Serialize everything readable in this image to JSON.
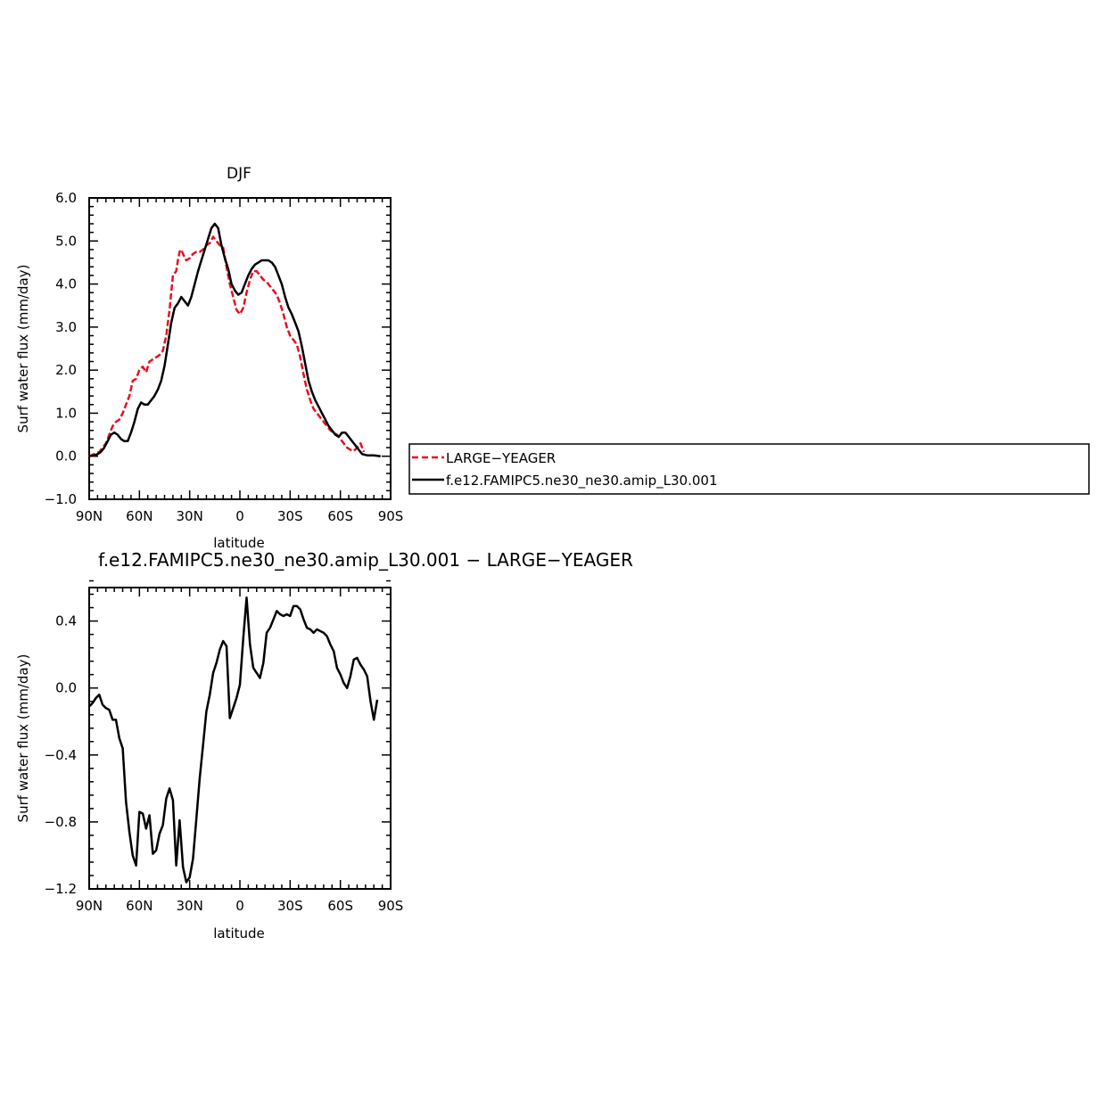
{
  "chart_data": [
    {
      "type": "line",
      "title": "DJF",
      "xlabel": "latitude",
      "ylabel": "Surf water flux (mm/day)",
      "xlim": [
        90,
        -90
      ],
      "ylim": [
        -1.0,
        6.0
      ],
      "xticks": [
        90,
        60,
        30,
        0,
        -30,
        -60,
        -90
      ],
      "xtick_labels": [
        "90N",
        "60N",
        "30N",
        "0",
        "30S",
        "60S",
        "90S"
      ],
      "yticks": [
        -1.0,
        0.0,
        1.0,
        2.0,
        3.0,
        4.0,
        5.0,
        6.0
      ],
      "ytick_labels": [
        "−1.0",
        "0.0",
        "1.0",
        "2.0",
        "3.0",
        "4.0",
        "5.0",
        "6.0"
      ],
      "legend_position": "right, outside plot",
      "series": [
        {
          "name": "LARGE−YEAGER",
          "color": "#e8101f",
          "dash": "dashed",
          "points": [
            [
              90,
              0.0
            ],
            [
              87,
              0.05
            ],
            [
              84,
              0.1
            ],
            [
              82,
              0.2
            ],
            [
              80,
              0.3
            ],
            [
              78,
              0.5
            ],
            [
              76,
              0.7
            ],
            [
              74,
              0.8
            ],
            [
              72,
              0.85
            ],
            [
              70,
              1.0
            ],
            [
              68,
              1.2
            ],
            [
              66,
              1.4
            ],
            [
              64,
              1.75
            ],
            [
              62,
              1.8
            ],
            [
              60,
              2.0
            ],
            [
              58,
              2.08
            ],
            [
              56,
              1.95
            ],
            [
              54,
              2.2
            ],
            [
              52,
              2.25
            ],
            [
              50,
              2.3
            ],
            [
              48,
              2.35
            ],
            [
              46,
              2.45
            ],
            [
              44,
              2.8
            ],
            [
              42,
              3.4
            ],
            [
              40,
              4.2
            ],
            [
              38,
              4.3
            ],
            [
              37,
              4.55
            ],
            [
              36,
              4.75
            ],
            [
              35,
              4.8
            ],
            [
              34,
              4.7
            ],
            [
              32,
              4.55
            ],
            [
              30,
              4.6
            ],
            [
              28,
              4.7
            ],
            [
              26,
              4.75
            ],
            [
              24,
              4.75
            ],
            [
              22,
              4.8
            ],
            [
              20,
              4.9
            ],
            [
              18,
              4.95
            ],
            [
              16,
              5.1
            ],
            [
              14,
              5.0
            ],
            [
              12,
              4.9
            ],
            [
              10,
              4.85
            ],
            [
              8,
              4.4
            ],
            [
              6,
              4.0
            ],
            [
              4,
              3.7
            ],
            [
              2,
              3.4
            ],
            [
              0,
              3.3
            ],
            [
              -2,
              3.45
            ],
            [
              -4,
              3.8
            ],
            [
              -6,
              4.1
            ],
            [
              -8,
              4.3
            ],
            [
              -10,
              4.3
            ],
            [
              -12,
              4.2
            ],
            [
              -14,
              4.1
            ],
            [
              -16,
              4.05
            ],
            [
              -18,
              3.95
            ],
            [
              -20,
              3.85
            ],
            [
              -22,
              3.75
            ],
            [
              -24,
              3.55
            ],
            [
              -26,
              3.3
            ],
            [
              -28,
              3.0
            ],
            [
              -30,
              2.8
            ],
            [
              -32,
              2.7
            ],
            [
              -34,
              2.6
            ],
            [
              -36,
              2.3
            ],
            [
              -38,
              1.9
            ],
            [
              -40,
              1.55
            ],
            [
              -42,
              1.3
            ],
            [
              -44,
              1.1
            ],
            [
              -46,
              1.0
            ],
            [
              -48,
              0.9
            ],
            [
              -50,
              0.8
            ],
            [
              -52,
              0.7
            ],
            [
              -54,
              0.6
            ],
            [
              -56,
              0.55
            ],
            [
              -58,
              0.5
            ],
            [
              -60,
              0.4
            ],
            [
              -62,
              0.3
            ],
            [
              -64,
              0.2
            ],
            [
              -66,
              0.15
            ],
            [
              -68,
              0.12
            ],
            [
              -70,
              0.2
            ],
            [
              -72,
              0.3
            ],
            [
              -74,
              0.1
            ]
          ]
        },
        {
          "name": "f.e12.FAMIPC5.ne30_ne30.amip_L30.001",
          "color": "#000000",
          "dash": "solid",
          "points": [
            [
              90,
              0.0
            ],
            [
              87,
              0.02
            ],
            [
              85,
              0.05
            ],
            [
              83,
              0.1
            ],
            [
              81,
              0.2
            ],
            [
              79,
              0.35
            ],
            [
              77,
              0.5
            ],
            [
              75,
              0.55
            ],
            [
              73,
              0.5
            ],
            [
              71,
              0.4
            ],
            [
              69,
              0.35
            ],
            [
              67,
              0.35
            ],
            [
              65,
              0.55
            ],
            [
              63,
              0.8
            ],
            [
              61,
              1.1
            ],
            [
              59,
              1.25
            ],
            [
              57,
              1.2
            ],
            [
              55,
              1.2
            ],
            [
              53,
              1.3
            ],
            [
              51,
              1.4
            ],
            [
              49,
              1.55
            ],
            [
              47,
              1.75
            ],
            [
              45,
              2.1
            ],
            [
              43,
              2.6
            ],
            [
              41,
              3.1
            ],
            [
              39,
              3.45
            ],
            [
              37,
              3.55
            ],
            [
              35,
              3.7
            ],
            [
              33,
              3.6
            ],
            [
              31,
              3.5
            ],
            [
              29,
              3.7
            ],
            [
              27,
              4.0
            ],
            [
              25,
              4.3
            ],
            [
              23,
              4.55
            ],
            [
              21,
              4.8
            ],
            [
              19,
              5.05
            ],
            [
              17,
              5.3
            ],
            [
              15,
              5.4
            ],
            [
              13,
              5.3
            ],
            [
              11,
              4.9
            ],
            [
              9,
              4.6
            ],
            [
              7,
              4.35
            ],
            [
              5,
              4.0
            ],
            [
              3,
              3.85
            ],
            [
              1,
              3.75
            ],
            [
              -1,
              3.8
            ],
            [
              -3,
              4.0
            ],
            [
              -5,
              4.2
            ],
            [
              -7,
              4.35
            ],
            [
              -9,
              4.45
            ],
            [
              -11,
              4.5
            ],
            [
              -13,
              4.55
            ],
            [
              -15,
              4.55
            ],
            [
              -17,
              4.55
            ],
            [
              -19,
              4.5
            ],
            [
              -21,
              4.4
            ],
            [
              -23,
              4.2
            ],
            [
              -25,
              4.0
            ],
            [
              -27,
              3.7
            ],
            [
              -29,
              3.45
            ],
            [
              -31,
              3.3
            ],
            [
              -33,
              3.1
            ],
            [
              -35,
              2.9
            ],
            [
              -37,
              2.55
            ],
            [
              -39,
              2.15
            ],
            [
              -41,
              1.75
            ],
            [
              -43,
              1.5
            ],
            [
              -45,
              1.3
            ],
            [
              -47,
              1.15
            ],
            [
              -49,
              1.0
            ],
            [
              -51,
              0.85
            ],
            [
              -53,
              0.7
            ],
            [
              -55,
              0.6
            ],
            [
              -57,
              0.5
            ],
            [
              -59,
              0.45
            ],
            [
              -61,
              0.55
            ],
            [
              -63,
              0.55
            ],
            [
              -65,
              0.45
            ],
            [
              -67,
              0.35
            ],
            [
              -69,
              0.25
            ],
            [
              -71,
              0.15
            ],
            [
              -73,
              0.05
            ],
            [
              -76,
              0.02
            ],
            [
              -80,
              0.02
            ],
            [
              -84,
              0.0
            ]
          ]
        }
      ]
    },
    {
      "type": "line",
      "title": "f.e12.FAMIPC5.ne30_ne30.amip_L30.001 − LARGE−YEAGER",
      "xlabel": "latitude",
      "ylabel": "Surf water flux (mm/day)",
      "xlim": [
        90,
        -90
      ],
      "ylim": [
        -1.2,
        0.6
      ],
      "xticks": [
        90,
        60,
        30,
        0,
        -30,
        -60,
        -90
      ],
      "xtick_labels": [
        "90N",
        "60N",
        "30N",
        "0",
        "30S",
        "60S",
        "90S"
      ],
      "yticks": [
        -1.2,
        -0.8,
        -0.4,
        0.0,
        0.4
      ],
      "ytick_labels": [
        "−1.2",
        "−0.8",
        "−0.4",
        "0.0",
        "0.4"
      ],
      "series": [
        {
          "color": "#000000",
          "dash": "solid",
          "points": [
            [
              90,
              -0.11
            ],
            [
              88,
              -0.09
            ],
            [
              86,
              -0.06
            ],
            [
              84,
              -0.04
            ],
            [
              82,
              -0.1
            ],
            [
              80,
              -0.12
            ],
            [
              78,
              -0.13
            ],
            [
              76,
              -0.19
            ],
            [
              74,
              -0.19
            ],
            [
              72,
              -0.3
            ],
            [
              70,
              -0.36
            ],
            [
              68,
              -0.68
            ],
            [
              66,
              -0.86
            ],
            [
              64,
              -1.0
            ],
            [
              62,
              -1.06
            ],
            [
              60,
              -0.74
            ],
            [
              58,
              -0.75
            ],
            [
              56,
              -0.84
            ],
            [
              54,
              -0.76
            ],
            [
              52,
              -0.99
            ],
            [
              50,
              -0.97
            ],
            [
              48,
              -0.87
            ],
            [
              46,
              -0.82
            ],
            [
              44,
              -0.66
            ],
            [
              42,
              -0.6
            ],
            [
              40,
              -0.67
            ],
            [
              38,
              -1.06
            ],
            [
              36,
              -0.79
            ],
            [
              34,
              -1.07
            ],
            [
              32,
              -1.16
            ],
            [
              30,
              -1.13
            ],
            [
              28,
              -1.02
            ],
            [
              26,
              -0.78
            ],
            [
              24,
              -0.54
            ],
            [
              22,
              -0.34
            ],
            [
              20,
              -0.14
            ],
            [
              18,
              -0.04
            ],
            [
              16,
              0.09
            ],
            [
              14,
              0.15
            ],
            [
              12,
              0.23
            ],
            [
              10,
              0.28
            ],
            [
              8,
              0.25
            ],
            [
              6,
              -0.18
            ],
            [
              4,
              -0.12
            ],
            [
              2,
              -0.06
            ],
            [
              0,
              0.02
            ],
            [
              -2,
              0.3
            ],
            [
              -4,
              0.54
            ],
            [
              -6,
              0.26
            ],
            [
              -8,
              0.12
            ],
            [
              -10,
              0.09
            ],
            [
              -12,
              0.06
            ],
            [
              -14,
              0.15
            ],
            [
              -16,
              0.33
            ],
            [
              -18,
              0.36
            ],
            [
              -20,
              0.41
            ],
            [
              -22,
              0.46
            ],
            [
              -24,
              0.44
            ],
            [
              -26,
              0.43
            ],
            [
              -28,
              0.44
            ],
            [
              -30,
              0.43
            ],
            [
              -32,
              0.49
            ],
            [
              -34,
              0.49
            ],
            [
              -36,
              0.47
            ],
            [
              -38,
              0.41
            ],
            [
              -40,
              0.36
            ],
            [
              -42,
              0.35
            ],
            [
              -44,
              0.33
            ],
            [
              -46,
              0.35
            ],
            [
              -48,
              0.34
            ],
            [
              -50,
              0.33
            ],
            [
              -52,
              0.31
            ],
            [
              -54,
              0.26
            ],
            [
              -56,
              0.22
            ],
            [
              -58,
              0.12
            ],
            [
              -60,
              0.08
            ],
            [
              -62,
              0.03
            ],
            [
              -64,
              0.0
            ],
            [
              -66,
              0.07
            ],
            [
              -68,
              0.17
            ],
            [
              -70,
              0.18
            ],
            [
              -72,
              0.14
            ],
            [
              -74,
              0.11
            ],
            [
              -76,
              0.07
            ],
            [
              -78,
              -0.08
            ],
            [
              -80,
              -0.19
            ],
            [
              -82,
              -0.07
            ]
          ]
        }
      ]
    }
  ]
}
